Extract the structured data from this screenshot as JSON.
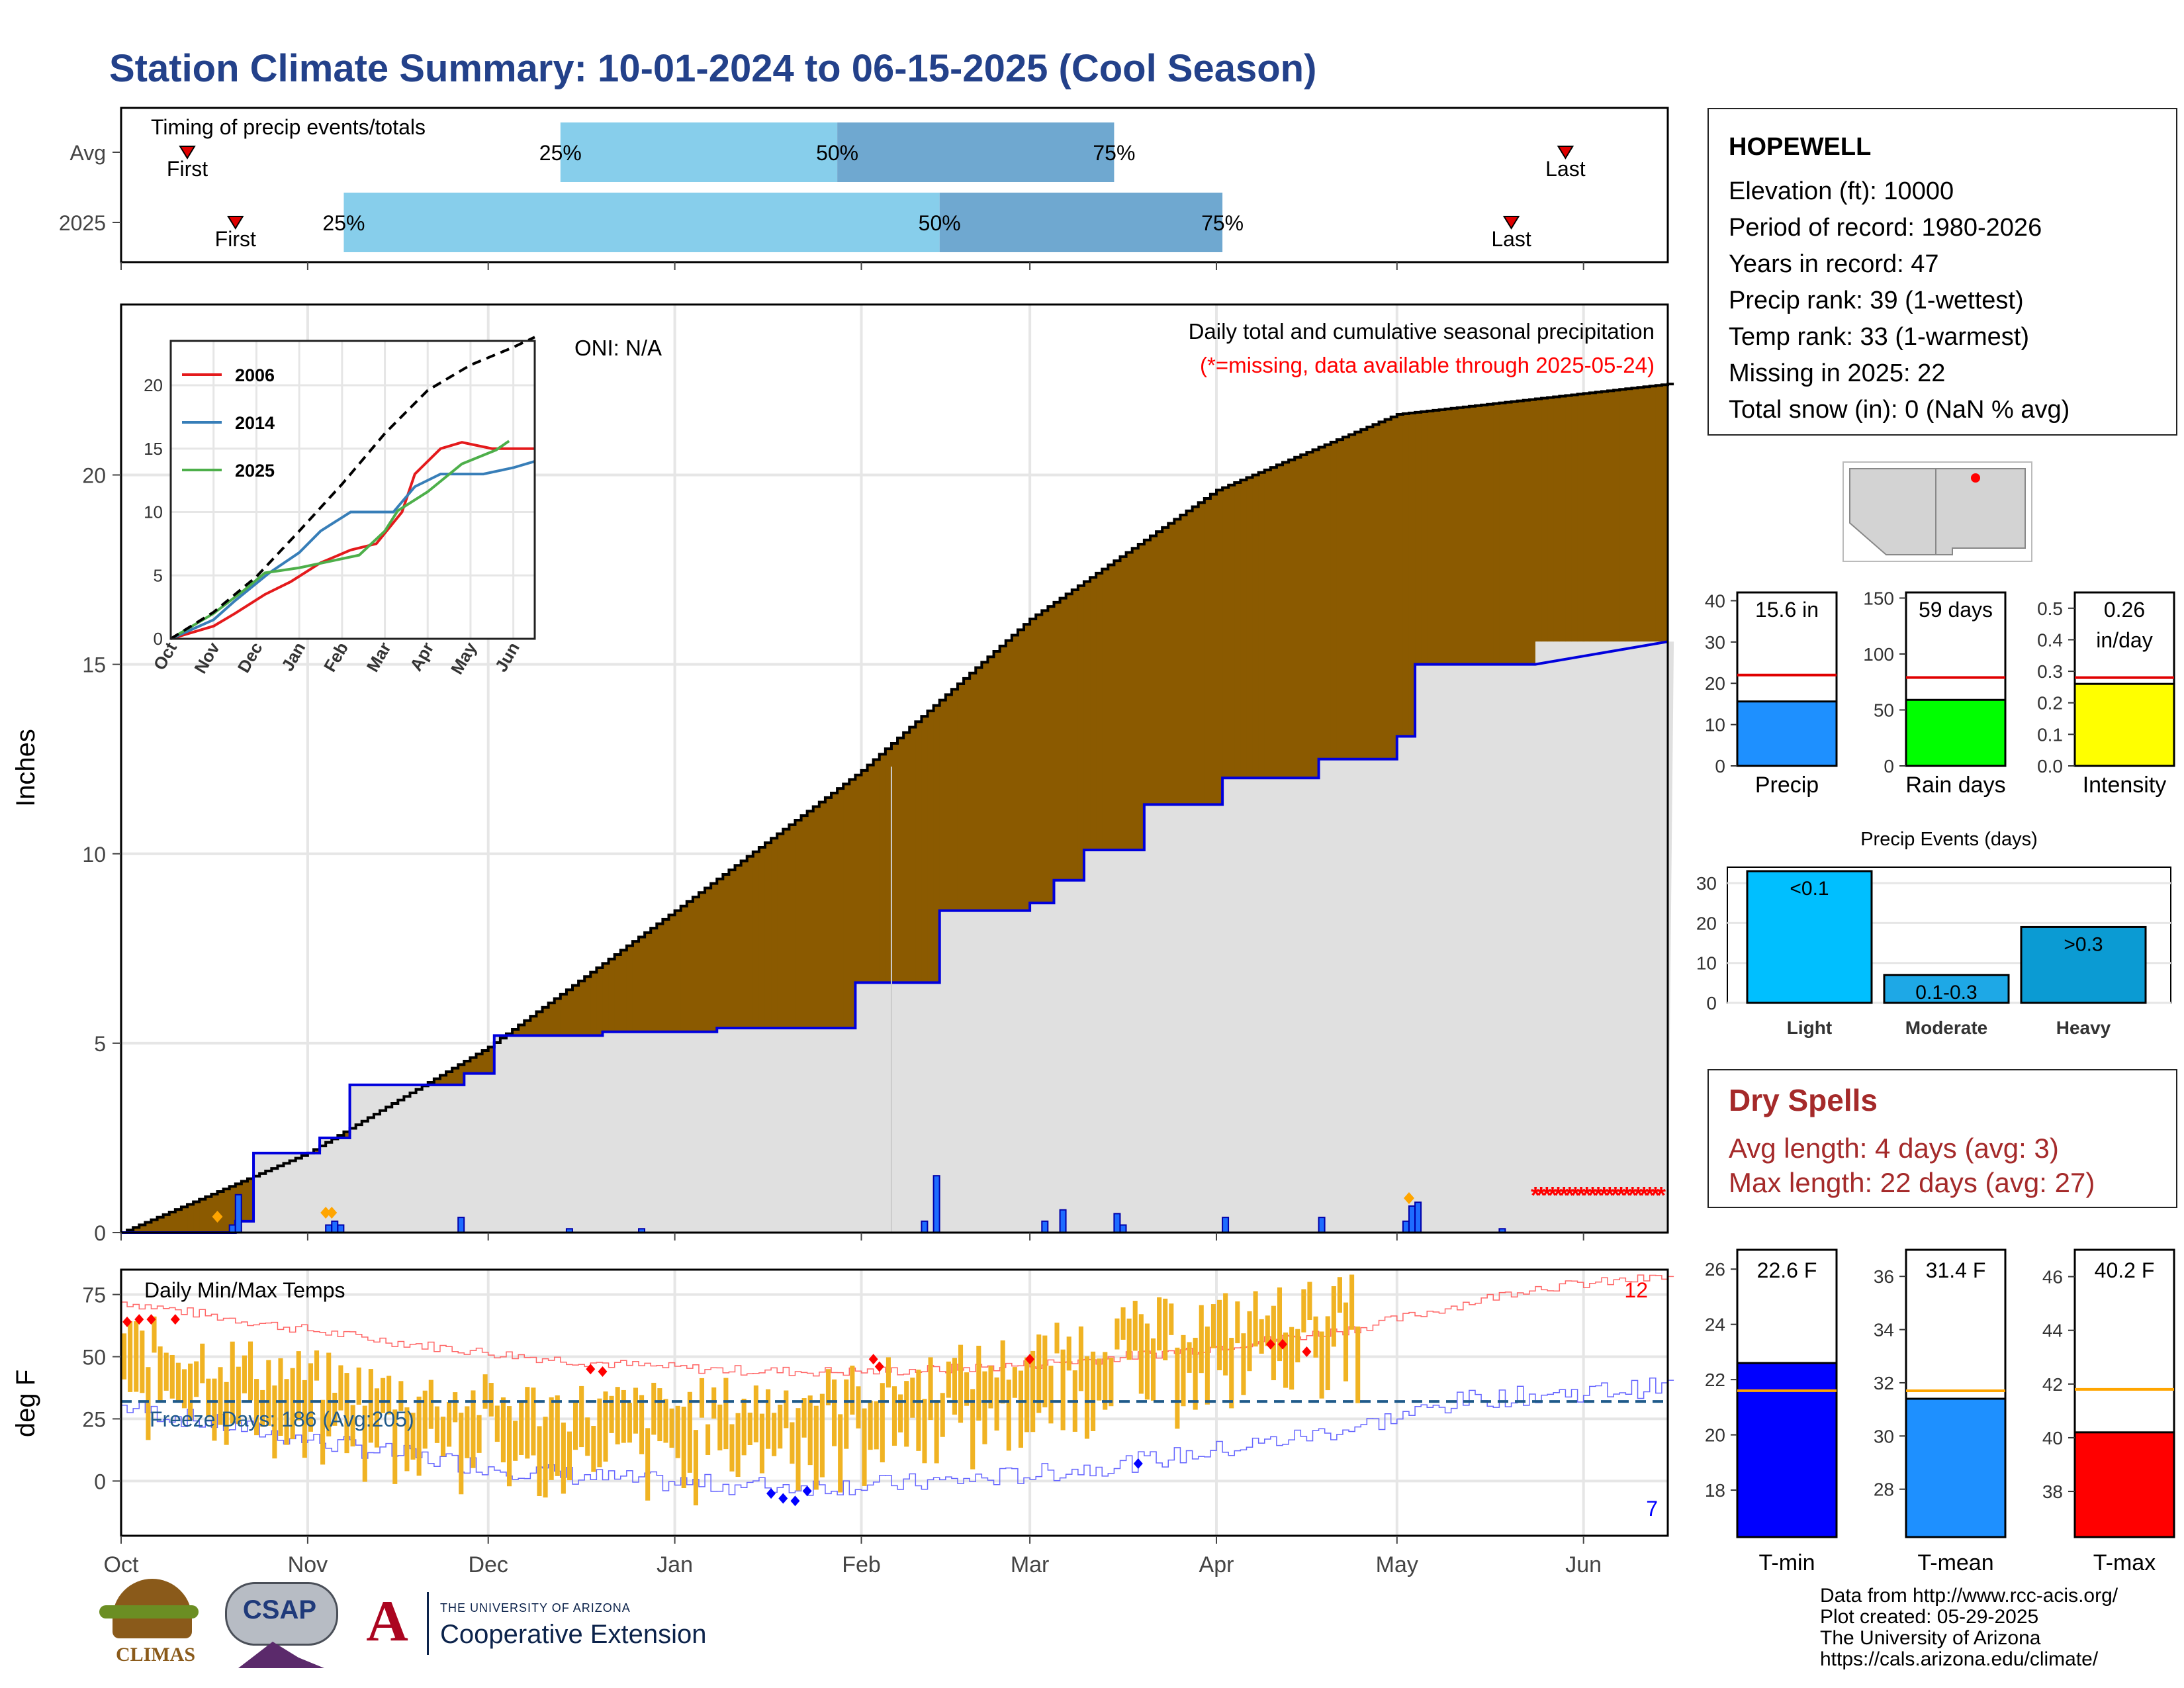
{
  "title": "Station Climate Summary: 10-01-2024 to 06-15-2025 (Cool Season)",
  "timing": {
    "label": "Timing of precip events/totals",
    "rows": [
      {
        "name": "Avg",
        "first": "First",
        "last": "Last",
        "p25": "25%",
        "p50": "50%",
        "p75": "75%",
        "first_date": "2024-10-12",
        "last_date": "2025-05-29",
        "d25": "2024-12-13",
        "d50": "2025-01-28",
        "d75": "2025-03-15"
      },
      {
        "name": "2025",
        "first": "First",
        "last": "Last",
        "p25": "25%",
        "p50": "50%",
        "p75": "75%",
        "first_date": "2024-10-20",
        "last_date": "2025-05-20",
        "d25": "2024-11-07",
        "d50": "2025-02-14",
        "d75": "2025-04-02"
      }
    ]
  },
  "precip_panel": {
    "ylabel": "Inches",
    "title_line1": "Daily total and cumulative seasonal precipitation",
    "title_line2": "(*=missing, data available through 2025-05-24)",
    "oni": "ONI: N/A",
    "yticks": [
      0,
      5,
      10,
      15,
      20
    ]
  },
  "temp_panel": {
    "ylabel": "deg F",
    "label": "Daily Min/Max Temps",
    "freeze": "Freeze Days: 186 (Avg:205)",
    "max_count": "12",
    "min_count": "7",
    "yticks": [
      0,
      25,
      50,
      75
    ]
  },
  "month_labels": [
    "Oct",
    "Nov",
    "Dec",
    "Jan",
    "Feb",
    "Mar",
    "Apr",
    "May",
    "Jun"
  ],
  "inset": {
    "legend": [
      "2006",
      "2014",
      "2025"
    ],
    "months": [
      "Oct",
      "Nov",
      "Dec",
      "Jan",
      "Feb",
      "Mar",
      "Apr",
      "May",
      "Jun"
    ],
    "yticks": [
      0,
      5,
      10,
      15,
      20
    ]
  },
  "station": {
    "name": "HOPEWELL",
    "lines": [
      "Elevation (ft): 10000",
      "Period of record: 1980-2026",
      "Years in record: 47",
      "Precip rank: 39 (1-wettest)",
      "Temp rank: 33 (1-warmest)",
      "Missing in 2025: 22",
      "Total snow (in): 0 (NaN % avg)"
    ]
  },
  "summary_bars": [
    {
      "label": "Precip",
      "value_text": "15.6 in",
      "value": 15.6,
      "avg": 22,
      "ymax": 42,
      "ticks": [
        0,
        10,
        20,
        30,
        40
      ],
      "color": "#1e90ff"
    },
    {
      "label": "Rain days",
      "value_text": "59 days",
      "value": 59,
      "avg": 79,
      "ymax": 155,
      "ticks": [
        0,
        50,
        100,
        150
      ],
      "color": "#00ff00"
    },
    {
      "label": "Intensity",
      "value_text": "0.26\nin/day",
      "value": 0.26,
      "avg": 0.28,
      "ymax": 0.55,
      "ticks": [
        "0.0",
        "0.1",
        "0.2",
        "0.3",
        "0.4",
        "0.5"
      ],
      "color": "#ffff00"
    }
  ],
  "events": {
    "title": "Precip Events (days)",
    "categories": [
      "Light",
      "Moderate",
      "Heavy"
    ],
    "bar_labels": [
      "<0.1",
      "0.1-0.3",
      ">0.3"
    ],
    "values": [
      33,
      7,
      19
    ],
    "colors": [
      "#00bfff",
      "#1ea8e6",
      "#0b9bd3"
    ],
    "ticks": [
      0,
      10,
      20,
      30
    ]
  },
  "dry_spells": {
    "title": "Dry Spells",
    "avg": "Avg length: 4 days (avg: 3)",
    "max": "Max length: 22 days (avg: 27)"
  },
  "temp_bars": [
    {
      "label": "T-min",
      "value_text": "22.6 F",
      "value": 22.6,
      "avg": 21.6,
      "ymin": 16.3,
      "ymax": 26.7,
      "ticks": [
        18,
        20,
        22,
        24,
        26
      ],
      "color": "#0000ff"
    },
    {
      "label": "T-mean",
      "value_text": "31.4 F",
      "value": 31.4,
      "avg": 31.7,
      "ymin": 26.2,
      "ymax": 37.0,
      "ticks": [
        28,
        30,
        32,
        34,
        36
      ],
      "color": "#1e90ff"
    },
    {
      "label": "T-max",
      "value_text": "40.2 F",
      "value": 40.2,
      "avg": 41.8,
      "ymin": 36.3,
      "ymax": 47.0,
      "ticks": [
        38,
        40,
        42,
        44,
        46
      ],
      "color": "#ff0000"
    }
  ],
  "footer": [
    "Data from http://www.rcc-acis.org/",
    "Plot created: 05-29-2025",
    "The University of Arizona",
    "https://cals.arizona.edu/climate/"
  ],
  "logos": {
    "climas": "CLIMAS",
    "csap": "CSAP",
    "ua_small": "THE UNIVERSITY OF ARIZONA",
    "ua_big": "Cooperative Extension"
  },
  "chart_data": {
    "type": "area",
    "series": [
      {
        "name": "2025",
        "x": [
          "2024-10-01",
          "2024-10-20",
          "2024-10-23",
          "2024-11-03",
          "2024-11-08",
          "2024-11-27",
          "2024-12-02",
          "2024-12-20",
          "2025-01-08",
          "2025-01-31",
          "2025-02-12",
          "2025-02-14",
          "2025-03-01",
          "2025-03-05",
          "2025-03-10",
          "2025-03-20",
          "2025-04-02",
          "2025-04-18",
          "2025-05-01",
          "2025-05-04",
          "2025-05-24",
          "2025-06-15"
        ],
        "values": [
          0,
          0.3,
          2.1,
          2.5,
          3.9,
          4.2,
          5.2,
          5.3,
          5.4,
          6.6,
          6.6,
          8.5,
          8.7,
          9.3,
          10.1,
          11.3,
          12.0,
          12.5,
          13.1,
          15.0,
          15.6,
          15.6
        ]
      },
      {
        "name": "Avg",
        "x": [
          "2024-10-01",
          "2024-11-01",
          "2024-12-01",
          "2025-01-01",
          "2025-02-01",
          "2025-03-01",
          "2025-04-01",
          "2025-05-01",
          "2025-06-15"
        ],
        "values": [
          0,
          2.1,
          4.9,
          8.5,
          12.2,
          16.2,
          19.6,
          21.6,
          22.4
        ]
      }
    ],
    "daily_precip": {
      "dates": [
        "2024-10-19",
        "2024-10-20",
        "2024-11-04",
        "2024-11-05",
        "2024-11-06",
        "2024-11-26",
        "2024-12-14",
        "2024-12-26",
        "2025-02-11",
        "2025-02-13",
        "2025-03-03",
        "2025-03-06",
        "2025-03-15",
        "2025-03-16",
        "2025-04-02",
        "2025-04-18",
        "2025-05-02",
        "2025-05-03",
        "2025-05-04",
        "2025-05-18"
      ],
      "values": [
        0.2,
        1.0,
        0.2,
        0.3,
        0.2,
        0.4,
        0.1,
        0.1,
        0.3,
        1.5,
        0.3,
        0.6,
        0.5,
        0.2,
        0.4,
        0.4,
        0.3,
        0.7,
        0.8,
        0.1
      ]
    },
    "ylim": [
      0,
      24.5
    ],
    "xlim": [
      "2024-10-01",
      "2025-06-15"
    ],
    "inset_series": [
      {
        "name": "2006",
        "color": "#e41a1c",
        "x": [
          0,
          1,
          1.5,
          2.2,
          2.8,
          3.5,
          4.2,
          4.8,
          5.4,
          5.7,
          6.3,
          6.8,
          7.5,
          8.5
        ],
        "values": [
          0,
          1,
          2,
          3.5,
          4.5,
          6,
          7,
          7.5,
          10,
          13,
          15,
          15.5,
          15,
          15
        ]
      },
      {
        "name": "2014",
        "color": "#377eb8",
        "x": [
          0,
          1,
          1.5,
          2.3,
          3.0,
          3.5,
          4.2,
          5.2,
          5.7,
          6.3,
          7.3,
          8.0,
          8.5
        ],
        "values": [
          0,
          1.5,
          3,
          5.2,
          6.8,
          8.5,
          10,
          10,
          12,
          13,
          13,
          13.5,
          14
        ]
      },
      {
        "name": "2025",
        "color": "#4daf4a",
        "x": [
          0,
          1,
          1.7,
          2.2,
          3.0,
          4.4,
          5.0,
          5.3,
          6.0,
          6.8,
          7.6,
          7.9
        ],
        "values": [
          0,
          2,
          3.8,
          5.2,
          5.6,
          6.6,
          8.5,
          10.1,
          11.6,
          13.8,
          14.9,
          15.6
        ]
      }
    ],
    "inset_avg": {
      "x": [
        0,
        1,
        2,
        3,
        4,
        5,
        6,
        7,
        8,
        8.5
      ],
      "values": [
        0,
        2.1,
        4.9,
        8.5,
        12.2,
        16.2,
        19.6,
        21.6,
        23,
        23.8
      ]
    },
    "inset_ylim": [
      0,
      23.5
    ]
  }
}
